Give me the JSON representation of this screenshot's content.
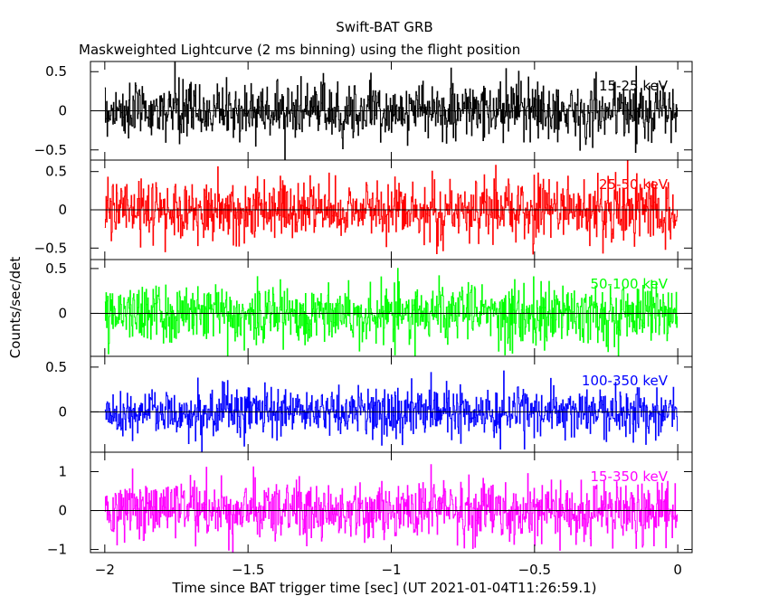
{
  "chart_data": {
    "type": "line",
    "title": "Swift-BAT GRB",
    "subtitle": "Maskweighted Lightcurve (2 ms binning) using the flight position",
    "xlabel": "Time since BAT trigger time [sec] (UT 2021-01-04T11:26:59.1)",
    "ylabel": "Counts/sec/det",
    "xlim": [
      -2.05,
      0.05
    ],
    "x_ticks": [
      -2,
      -1.5,
      -1,
      -0.5,
      0
    ],
    "x_tick_labels": [
      "−2",
      "−1.5",
      "−1",
      "−0.5",
      "0"
    ],
    "bin_width_sec": 0.002,
    "x_range": [
      -2.0,
      0.0
    ],
    "grid": false,
    "panels": [
      {
        "name": "15-25 keV",
        "color": "#000000",
        "ylim": [
          -0.63,
          0.63
        ],
        "y_ticks": [
          -0.5,
          0,
          0.5
        ],
        "y_tick_labels": [
          "−0.5",
          "0",
          "0.5"
        ],
        "noise_sigma": 0.18,
        "mean": 0.0
      },
      {
        "name": "25-50 keV",
        "color": "#ff0000",
        "ylim": [
          -0.65,
          0.65
        ],
        "y_ticks": [
          -0.5,
          0,
          0.5
        ],
        "y_tick_labels": [
          "−0.5",
          "0",
          "0.5"
        ],
        "noise_sigma": 0.2,
        "mean": 0.0
      },
      {
        "name": "50-100 keV",
        "color": "#00ff00",
        "ylim": [
          -0.48,
          0.6
        ],
        "y_ticks": [
          0,
          0.5
        ],
        "y_tick_labels": [
          "0",
          "0.5"
        ],
        "noise_sigma": 0.17,
        "mean": 0.0
      },
      {
        "name": "100-350 keV",
        "color": "#0000ff",
        "ylim": [
          -0.45,
          0.62
        ],
        "y_ticks": [
          0,
          0.5
        ],
        "y_tick_labels": [
          "0",
          "0.5"
        ],
        "noise_sigma": 0.14,
        "mean": 0.0
      },
      {
        "name": "15-350 keV",
        "color": "#ff00ff",
        "ylim": [
          -1.08,
          1.5
        ],
        "y_ticks": [
          -1,
          0,
          1
        ],
        "y_tick_labels": [
          "−1",
          "0",
          "1"
        ],
        "noise_sigma": 0.38,
        "mean": 0.0
      }
    ]
  }
}
